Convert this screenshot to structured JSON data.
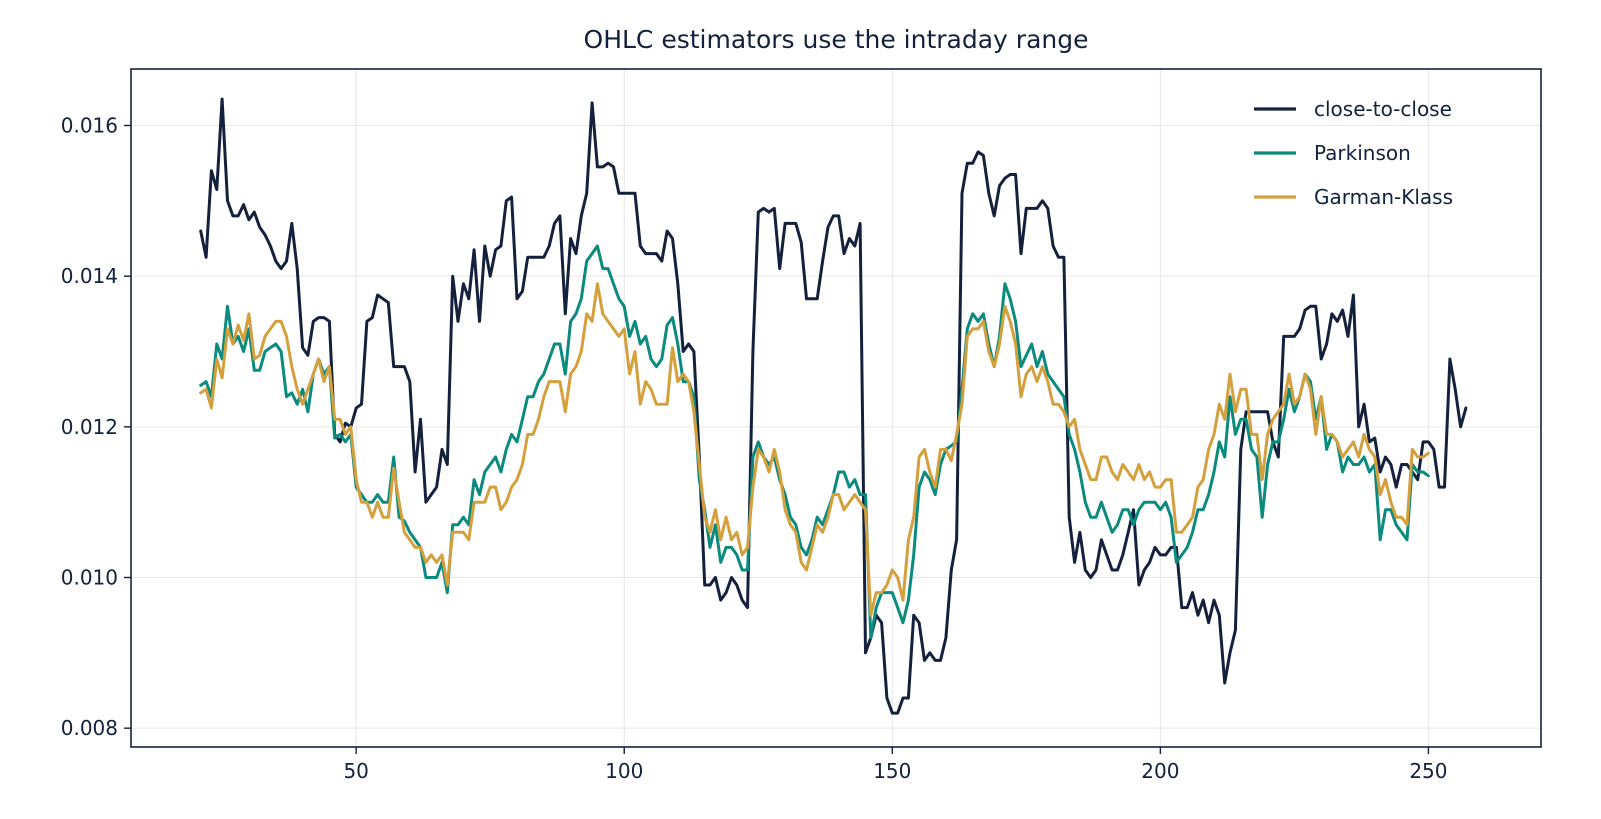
{
  "chart_data": {
    "type": "line",
    "title": "OHLC estimators use the intraday range",
    "xlabel": "",
    "ylabel": "",
    "xlim": [
      8,
      271
    ],
    "ylim": [
      0.00775,
      0.01675
    ],
    "x_ticks": [
      50,
      100,
      150,
      200,
      250
    ],
    "y_ticks": [
      0.008,
      0.01,
      0.012,
      0.014,
      0.016
    ],
    "x_tick_labels": [
      "50",
      "100",
      "150",
      "200",
      "250"
    ],
    "y_tick_labels": [
      "0.008",
      "0.010",
      "0.012",
      "0.014",
      "0.016"
    ],
    "grid": true,
    "legend_position": "top-right",
    "x_start": 21,
    "series": [
      {
        "name": "close-to-close",
        "color": "#14213d",
        "values": [
          0.0146,
          0.01425,
          0.0154,
          0.01515,
          0.01635,
          0.015,
          0.0148,
          0.0148,
          0.01495,
          0.01475,
          0.01485,
          0.01465,
          0.01455,
          0.0144,
          0.0142,
          0.0141,
          0.0142,
          0.0147,
          0.0141,
          0.01305,
          0.01295,
          0.0134,
          0.01345,
          0.01345,
          0.0134,
          0.0119,
          0.0118,
          0.01205,
          0.012,
          0.01225,
          0.0123,
          0.0134,
          0.01345,
          0.01375,
          0.0137,
          0.01365,
          0.0128,
          0.0128,
          0.0128,
          0.0126,
          0.0114,
          0.0121,
          0.011,
          0.0111,
          0.0112,
          0.0117,
          0.0115,
          0.014,
          0.0134,
          0.0139,
          0.0137,
          0.01435,
          0.0134,
          0.0144,
          0.014,
          0.01435,
          0.0144,
          0.015,
          0.01505,
          0.0137,
          0.0138,
          0.01425,
          0.01425,
          0.01425,
          0.01425,
          0.0144,
          0.0147,
          0.0148,
          0.0135,
          0.0145,
          0.0143,
          0.0148,
          0.0151,
          0.0163,
          0.01545,
          0.01545,
          0.0155,
          0.01545,
          0.0151,
          0.0151,
          0.0151,
          0.0151,
          0.0144,
          0.0143,
          0.0143,
          0.0143,
          0.0142,
          0.0146,
          0.0145,
          0.0139,
          0.013,
          0.0131,
          0.013,
          0.0116,
          0.0099,
          0.0099,
          0.01,
          0.0097,
          0.0098,
          0.01,
          0.0099,
          0.0097,
          0.0096,
          0.013,
          0.01485,
          0.0149,
          0.01485,
          0.0149,
          0.0141,
          0.0147,
          0.0147,
          0.0147,
          0.01445,
          0.0137,
          0.0137,
          0.0137,
          0.0142,
          0.01465,
          0.0148,
          0.0148,
          0.0143,
          0.0145,
          0.0144,
          0.0147,
          0.009,
          0.0092,
          0.0095,
          0.0094,
          0.0084,
          0.0082,
          0.0082,
          0.0084,
          0.0084,
          0.0095,
          0.0094,
          0.0089,
          0.009,
          0.0089,
          0.0089,
          0.0092,
          0.0101,
          0.0105,
          0.0151,
          0.0155,
          0.0155,
          0.01565,
          0.0156,
          0.0151,
          0.0148,
          0.0152,
          0.0153,
          0.01535,
          0.01535,
          0.0143,
          0.0149,
          0.0149,
          0.0149,
          0.015,
          0.0149,
          0.0144,
          0.01425,
          0.01425,
          0.0108,
          0.0102,
          0.0106,
          0.0101,
          0.01,
          0.0101,
          0.0105,
          0.0103,
          0.0101,
          0.0101,
          0.0103,
          0.0106,
          0.0109,
          0.0099,
          0.0101,
          0.0102,
          0.0104,
          0.0103,
          0.0103,
          0.0104,
          0.0104,
          0.0096,
          0.0096,
          0.0098,
          0.0095,
          0.0097,
          0.0094,
          0.0097,
          0.0095,
          0.0086,
          0.009,
          0.0093,
          0.0117,
          0.0122,
          0.0122,
          0.0122,
          0.0122,
          0.0122,
          0.0118,
          0.0116,
          0.0132,
          0.0132,
          0.0132,
          0.0133,
          0.01355,
          0.0136,
          0.0136,
          0.0129,
          0.0131,
          0.0135,
          0.0134,
          0.01355,
          0.0132,
          0.01375,
          0.012,
          0.0123,
          0.0118,
          0.01185,
          0.0114,
          0.0116,
          0.0115,
          0.0112,
          0.0115,
          0.0115,
          0.0114,
          0.0113,
          0.0118,
          0.0118,
          0.0117,
          0.0112,
          0.0112,
          0.0129,
          0.0125,
          0.012,
          0.01225
        ]
      },
      {
        "name": "Parkinson",
        "color": "#0b8a7e",
        "values": [
          0.01255,
          0.0126,
          0.0124,
          0.0131,
          0.0129,
          0.0136,
          0.0131,
          0.0132,
          0.013,
          0.0133,
          0.01275,
          0.01275,
          0.013,
          0.01305,
          0.0131,
          0.013,
          0.0124,
          0.01245,
          0.0123,
          0.0125,
          0.0122,
          0.0127,
          0.0129,
          0.0127,
          0.0128,
          0.01185,
          0.0119,
          0.0118,
          0.0119,
          0.0112,
          0.0111,
          0.011,
          0.011,
          0.0111,
          0.011,
          0.011,
          0.0116,
          0.0108,
          0.01075,
          0.0106,
          0.0105,
          0.0104,
          0.01,
          0.01,
          0.01,
          0.0102,
          0.0098,
          0.0107,
          0.0107,
          0.0108,
          0.0107,
          0.0113,
          0.0111,
          0.0114,
          0.0115,
          0.0116,
          0.0114,
          0.0117,
          0.0119,
          0.0118,
          0.0121,
          0.0124,
          0.0124,
          0.0126,
          0.0127,
          0.0129,
          0.0131,
          0.0131,
          0.0127,
          0.0134,
          0.0135,
          0.0137,
          0.0142,
          0.0143,
          0.0144,
          0.0141,
          0.0141,
          0.0139,
          0.0137,
          0.0136,
          0.0132,
          0.0134,
          0.0131,
          0.0132,
          0.0129,
          0.0128,
          0.0129,
          0.01335,
          0.01345,
          0.0131,
          0.0126,
          0.0126,
          0.0124,
          0.0113,
          0.0109,
          0.0104,
          0.0107,
          0.0102,
          0.0104,
          0.0104,
          0.0103,
          0.0101,
          0.0101,
          0.0116,
          0.0118,
          0.0116,
          0.0115,
          0.0116,
          0.0113,
          0.0111,
          0.0108,
          0.0107,
          0.0104,
          0.0103,
          0.0105,
          0.0108,
          0.0107,
          0.0109,
          0.0111,
          0.0114,
          0.0114,
          0.0112,
          0.0113,
          0.0111,
          0.0111,
          0.0092,
          0.0096,
          0.0098,
          0.0098,
          0.0098,
          0.0096,
          0.0094,
          0.0097,
          0.0103,
          0.0112,
          0.0114,
          0.0113,
          0.0111,
          0.0115,
          0.0117,
          0.01175,
          0.0118,
          0.0125,
          0.0133,
          0.0135,
          0.0134,
          0.0135,
          0.0131,
          0.0128,
          0.0132,
          0.0139,
          0.0137,
          0.0134,
          0.0128,
          0.01295,
          0.0131,
          0.0128,
          0.013,
          0.0127,
          0.0126,
          0.0125,
          0.0124,
          0.0119,
          0.0117,
          0.0114,
          0.011,
          0.0108,
          0.0108,
          0.011,
          0.0108,
          0.0106,
          0.0107,
          0.0109,
          0.0109,
          0.0107,
          0.0109,
          0.011,
          0.011,
          0.011,
          0.0109,
          0.011,
          0.0108,
          0.0102,
          0.0103,
          0.0104,
          0.0106,
          0.0109,
          0.0109,
          0.0111,
          0.0114,
          0.0118,
          0.0116,
          0.0124,
          0.0119,
          0.0121,
          0.0121,
          0.0117,
          0.0116,
          0.0108,
          0.0115,
          0.0118,
          0.0118,
          0.0121,
          0.0125,
          0.0122,
          0.0124,
          0.0127,
          0.0126,
          0.0121,
          0.0124,
          0.0117,
          0.0119,
          0.0118,
          0.0114,
          0.0116,
          0.0115,
          0.0115,
          0.0116,
          0.0114,
          0.0115,
          0.0105,
          0.0109,
          0.0109,
          0.0107,
          0.0106,
          0.0105,
          0.0115,
          0.0114,
          0.0114,
          0.01135
        ]
      },
      {
        "name": "Garman-Klass",
        "color": "#d4a03e",
        "values": [
          0.01245,
          0.0125,
          0.01225,
          0.0129,
          0.01265,
          0.0133,
          0.0131,
          0.01335,
          0.01315,
          0.0135,
          0.0129,
          0.01295,
          0.0132,
          0.0133,
          0.0134,
          0.0134,
          0.0132,
          0.0128,
          0.0125,
          0.0123,
          0.0125,
          0.0127,
          0.0129,
          0.0126,
          0.0128,
          0.0121,
          0.0121,
          0.0119,
          0.012,
          0.0113,
          0.011,
          0.011,
          0.0108,
          0.011,
          0.0108,
          0.0108,
          0.01145,
          0.011,
          0.0106,
          0.0105,
          0.0104,
          0.0104,
          0.0102,
          0.0103,
          0.0102,
          0.0103,
          0.0099,
          0.0106,
          0.0106,
          0.0106,
          0.0105,
          0.011,
          0.011,
          0.011,
          0.0112,
          0.0112,
          0.0109,
          0.011,
          0.0112,
          0.0113,
          0.0115,
          0.0119,
          0.0119,
          0.0121,
          0.0124,
          0.0126,
          0.0126,
          0.0126,
          0.0122,
          0.0127,
          0.0128,
          0.013,
          0.0135,
          0.0134,
          0.0139,
          0.0135,
          0.0134,
          0.0133,
          0.0132,
          0.0133,
          0.0127,
          0.013,
          0.0123,
          0.0126,
          0.0125,
          0.0123,
          0.0123,
          0.0123,
          0.01305,
          0.0126,
          0.0127,
          0.0126,
          0.0122,
          0.0115,
          0.0108,
          0.0106,
          0.0109,
          0.0105,
          0.0108,
          0.0105,
          0.0106,
          0.0103,
          0.0104,
          0.0112,
          0.0117,
          0.0116,
          0.0114,
          0.0117,
          0.0114,
          0.0109,
          0.0107,
          0.0106,
          0.0102,
          0.0101,
          0.0104,
          0.0107,
          0.0106,
          0.0108,
          0.0111,
          0.0111,
          0.0109,
          0.011,
          0.0111,
          0.011,
          0.0109,
          0.0095,
          0.0098,
          0.0098,
          0.0099,
          0.0101,
          0.01,
          0.0097,
          0.0105,
          0.0108,
          0.0116,
          0.0117,
          0.0114,
          0.0112,
          0.0117,
          0.0117,
          0.01155,
          0.0119,
          0.0123,
          0.0132,
          0.0133,
          0.0133,
          0.0134,
          0.013,
          0.0128,
          0.0131,
          0.0136,
          0.0134,
          0.0131,
          0.0124,
          0.0127,
          0.0128,
          0.0126,
          0.0128,
          0.0126,
          0.0123,
          0.0123,
          0.0122,
          0.012,
          0.0121,
          0.0117,
          0.0115,
          0.0113,
          0.0113,
          0.0116,
          0.0116,
          0.0114,
          0.0113,
          0.0115,
          0.0114,
          0.0113,
          0.0115,
          0.0113,
          0.0114,
          0.0112,
          0.0112,
          0.0113,
          0.0113,
          0.0106,
          0.0106,
          0.0107,
          0.0108,
          0.0112,
          0.0113,
          0.0117,
          0.0119,
          0.0123,
          0.0121,
          0.0127,
          0.0122,
          0.0125,
          0.0125,
          0.0119,
          0.0119,
          0.0113,
          0.0119,
          0.0121,
          0.0122,
          0.0123,
          0.0127,
          0.0123,
          0.0124,
          0.0127,
          0.0125,
          0.0119,
          0.0124,
          0.0119,
          0.0119,
          0.0118,
          0.0116,
          0.0117,
          0.0118,
          0.0116,
          0.0119,
          0.0117,
          0.0116,
          0.0111,
          0.0113,
          0.011,
          0.0108,
          0.0108,
          0.0107,
          0.0117,
          0.0116,
          0.0116,
          0.01165
        ]
      }
    ]
  }
}
